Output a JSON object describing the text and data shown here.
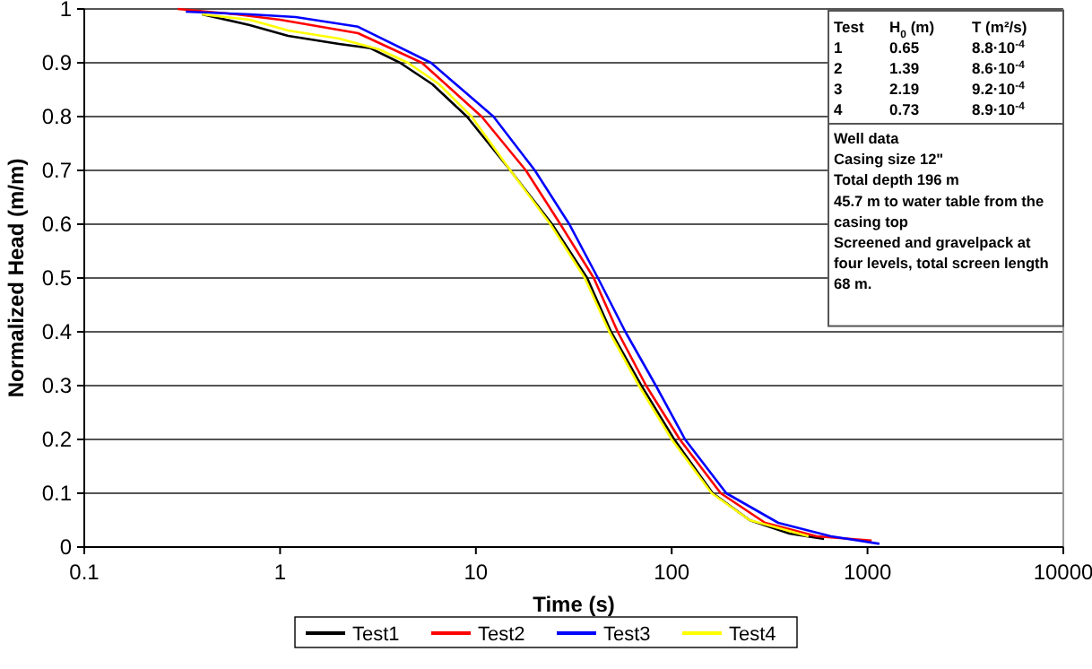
{
  "chart_data": {
    "type": "line",
    "xlabel": "Time (s)",
    "ylabel": "Normalized Head (m/m)",
    "log": "x",
    "xlim": [
      0.1,
      10000
    ],
    "xticks": [
      0.1,
      1,
      10,
      100,
      1000,
      10000
    ],
    "ylim": [
      0,
      1
    ],
    "yticks": [
      0,
      0.1,
      0.2,
      0.3,
      0.4,
      0.5,
      0.6,
      0.7,
      0.8,
      0.9,
      1
    ],
    "grid": "y",
    "legend": "bottom",
    "line_style": "solid",
    "marker": "none",
    "series": [
      {
        "name": "Test1",
        "color": "#000000",
        "x": [
          0.4,
          0.7,
          1.1,
          2,
          2.9,
          4.1,
          6,
          9,
          15,
          24.5,
          37,
          49,
          70,
          103,
          162,
          250,
          400,
          600
        ],
        "values": [
          0.99,
          0.97,
          0.95,
          0.935,
          0.927,
          0.9,
          0.86,
          0.8,
          0.7,
          0.6,
          0.5,
          0.4,
          0.3,
          0.2,
          0.1,
          0.05,
          0.025,
          0.015
        ]
      },
      {
        "name": "Test2",
        "color": "#ff0000",
        "x": [
          0.3,
          0.6,
          1,
          2.5,
          5.3,
          10.7,
          18,
          27,
          40,
          53,
          74,
          110,
          178,
          300,
          550,
          1050
        ],
        "values": [
          1,
          0.99,
          0.98,
          0.955,
          0.9,
          0.8,
          0.7,
          0.6,
          0.5,
          0.4,
          0.3,
          0.2,
          0.1,
          0.045,
          0.02,
          0.012
        ]
      },
      {
        "name": "Test3",
        "color": "#0000ff",
        "x": [
          0.33,
          0.7,
          1.2,
          2.5,
          5.9,
          12.3,
          20,
          30,
          42,
          58,
          83,
          117,
          190,
          350,
          650,
          1150
        ],
        "values": [
          0.995,
          0.99,
          0.985,
          0.967,
          0.9,
          0.8,
          0.7,
          0.6,
          0.5,
          0.4,
          0.3,
          0.2,
          0.1,
          0.045,
          0.02,
          0.006
        ]
      },
      {
        "name": "Test4",
        "color": "#ffff00",
        "x": [
          0.4,
          0.7,
          1.1,
          2,
          3.2,
          4.5,
          6.5,
          9.5,
          15,
          24,
          36,
          48,
          68,
          100,
          160,
          250,
          500
        ],
        "values": [
          0.99,
          0.98,
          0.96,
          0.945,
          0.925,
          0.9,
          0.86,
          0.8,
          0.7,
          0.6,
          0.5,
          0.4,
          0.3,
          0.2,
          0.1,
          0.05,
          0.02
        ]
      }
    ],
    "annotations": [
      "Test",
      "H$_{0}$ (m)",
      "T (m²/s)",
      "1",
      "0.65",
      "8.8·10$^{-4}$",
      "2",
      "1.39",
      "8.6·10$^{-4}$",
      "3",
      "2.19",
      "9.2·10$^{-4}$",
      "4",
      "0.73",
      "8.9·10$^{-4}$",
      "Well data",
      "Casing size 12\"",
      "Total depth 196 m",
      "45.7 m to water table from the",
      "casing top",
      "Screened and gravelpack at",
      "four levels, total screen length",
      "68 m."
    ]
  }
}
